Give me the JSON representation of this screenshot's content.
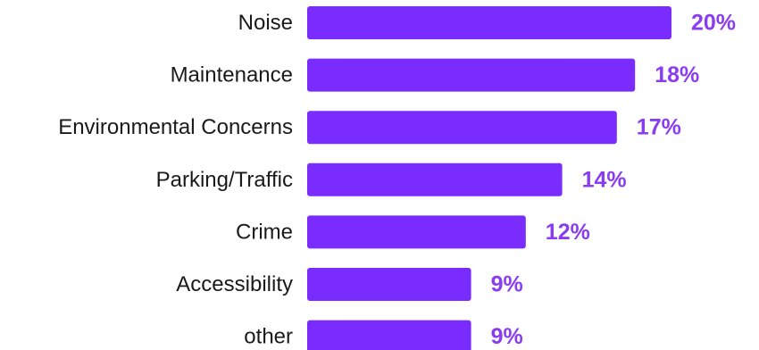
{
  "colors": {
    "bar": "#7a2cff",
    "value_text": "#8a3cf0",
    "label_text": "#1a1a1a",
    "background": "#ffffff"
  },
  "chart_data": {
    "type": "bar",
    "orientation": "horizontal",
    "categories": [
      "Noise",
      "Maintenance",
      "Environmental Concerns",
      "Parking/Traffic",
      "Crime",
      "Accessibility",
      "other"
    ],
    "values": [
      20,
      18,
      17,
      14,
      12,
      9,
      9
    ],
    "value_labels": [
      "20%",
      "18%",
      "17%",
      "14%",
      "12%",
      "9%",
      "9%"
    ],
    "unit": "%",
    "xlim": [
      0,
      20
    ],
    "grid": false,
    "legend": "none",
    "title": "",
    "xlabel": "",
    "ylabel": ""
  }
}
